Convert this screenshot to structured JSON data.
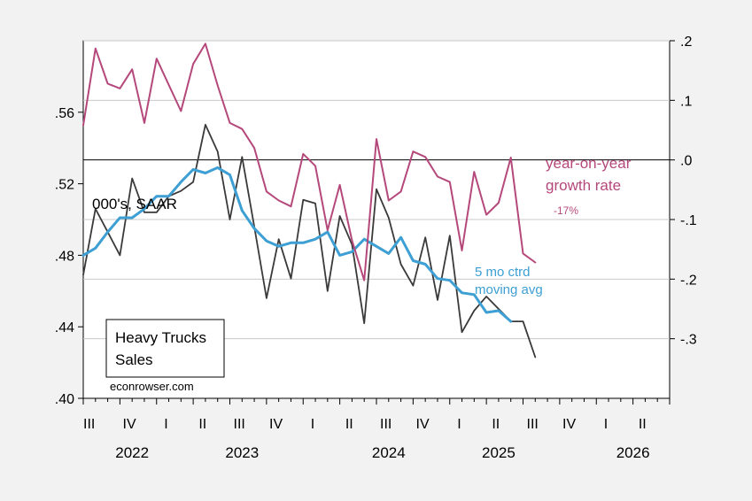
{
  "chart_data": {
    "type": "line",
    "title": "",
    "annotations": {
      "units": "000's, SAAR",
      "yoy_label_line1": "year-on-year",
      "yoy_label_line2": "growth rate",
      "yoy_last_value": "-17%",
      "ma_label_line1": "5 mo ctrd",
      "ma_label_line2": "moving avg",
      "legend_line1": "Heavy Trucks",
      "legend_line2": "Sales",
      "credit": "econrowser.com"
    },
    "colors": {
      "sales": "#3a3a3a",
      "moving_avg": "#3d9fd3",
      "yoy": "#b5487b",
      "background": "#f2f2f2",
      "plot_bg": "#ffffff"
    },
    "x_axis": {
      "start": "2022-07",
      "end": "2026-07",
      "quarter_ticks": [
        {
          "date": "2022-07",
          "label": "III"
        },
        {
          "date": "2022-10",
          "label": "IV"
        },
        {
          "date": "2023-01",
          "label": "I"
        },
        {
          "date": "2023-04",
          "label": "II"
        },
        {
          "date": "2023-07",
          "label": "III"
        },
        {
          "date": "2023-10",
          "label": "IV"
        },
        {
          "date": "2024-01",
          "label": "I"
        },
        {
          "date": "2024-04",
          "label": "II"
        },
        {
          "date": "2024-07",
          "label": "III"
        },
        {
          "date": "2024-10",
          "label": "IV"
        },
        {
          "date": "2025-01",
          "label": "I"
        },
        {
          "date": "2025-04",
          "label": "II"
        },
        {
          "date": "2025-07",
          "label": "III"
        },
        {
          "date": "2025-10",
          "label": "IV"
        },
        {
          "date": "2026-01",
          "label": "I"
        },
        {
          "date": "2026-04",
          "label": "II"
        }
      ],
      "year_labels": [
        {
          "date": "2022-11",
          "label": "2022"
        },
        {
          "date": "2023-08",
          "label": "2023"
        },
        {
          "date": "2024-08",
          "label": "2024"
        },
        {
          "date": "2025-05",
          "label": "2025"
        },
        {
          "date": "2026-04",
          "label": "2026"
        }
      ]
    },
    "y_left": {
      "ylim": [
        0.4,
        0.6
      ],
      "ticks": [
        0.4,
        0.44,
        0.48,
        0.52,
        0.56
      ],
      "tick_labels": [
        ".40",
        ".44",
        ".48",
        ".52",
        ".56"
      ]
    },
    "y_right": {
      "ylim": [
        -0.4,
        0.2
      ],
      "ticks": [
        0.2,
        0.1,
        0.0,
        -0.1,
        -0.2,
        -0.3
      ],
      "tick_labels": [
        ".2",
        ".1",
        ".0",
        "-.1",
        "-.2",
        "-.3"
      ]
    },
    "series": [
      {
        "name": "Heavy Trucks Sales",
        "axis": "left",
        "color": "#3a3a3a",
        "x": [
          "2022-07",
          "2022-08",
          "2022-09",
          "2022-10",
          "2022-11",
          "2022-12",
          "2023-01",
          "2023-02",
          "2023-03",
          "2023-04",
          "2023-05",
          "2023-06",
          "2023-07",
          "2023-08",
          "2023-09",
          "2023-10",
          "2023-11",
          "2023-12",
          "2024-01",
          "2024-02",
          "2024-03",
          "2024-04",
          "2024-05",
          "2024-06",
          "2024-07",
          "2024-08",
          "2024-09",
          "2024-10",
          "2024-11",
          "2024-12",
          "2025-01",
          "2025-02",
          "2025-03",
          "2025-04",
          "2025-05",
          "2025-06",
          "2025-07",
          "2025-08"
        ],
        "values": [
          0.469,
          0.506,
          0.493,
          0.48,
          0.523,
          0.504,
          0.504,
          0.513,
          0.516,
          0.521,
          0.553,
          0.538,
          0.5,
          0.535,
          0.496,
          0.456,
          0.489,
          0.467,
          0.511,
          0.509,
          0.46,
          0.502,
          0.486,
          0.442,
          0.517,
          0.501,
          0.475,
          0.463,
          0.49,
          0.455,
          0.491,
          0.437,
          0.449,
          0.457,
          0.45,
          0.443,
          0.443,
          0.423
        ]
      },
      {
        "name": "5 mo ctrd moving avg",
        "axis": "left",
        "color": "#3d9fd3",
        "x": [
          "2022-07",
          "2022-08",
          "2022-09",
          "2022-10",
          "2022-11",
          "2022-12",
          "2023-01",
          "2023-02",
          "2023-03",
          "2023-04",
          "2023-05",
          "2023-06",
          "2023-07",
          "2023-08",
          "2023-09",
          "2023-10",
          "2023-11",
          "2023-12",
          "2024-01",
          "2024-02",
          "2024-03",
          "2024-04",
          "2024-05",
          "2024-06",
          "2024-07",
          "2024-08",
          "2024-09",
          "2024-10",
          "2024-11",
          "2024-12",
          "2025-01",
          "2025-02",
          "2025-03",
          "2025-04",
          "2025-05",
          "2025-06"
        ],
        "values": [
          0.48,
          0.484,
          0.493,
          0.501,
          0.501,
          0.506,
          0.513,
          0.513,
          0.521,
          0.528,
          0.526,
          0.529,
          0.525,
          0.505,
          0.495,
          0.488,
          0.485,
          0.487,
          0.487,
          0.489,
          0.493,
          0.48,
          0.482,
          0.489,
          0.485,
          0.481,
          0.49,
          0.477,
          0.475,
          0.467,
          0.466,
          0.459,
          0.458,
          0.448,
          0.449,
          0.443
        ]
      },
      {
        "name": "year-on-year growth rate",
        "axis": "right",
        "color": "#b5487b",
        "x": [
          "2022-07",
          "2022-08",
          "2022-09",
          "2022-10",
          "2022-11",
          "2022-12",
          "2023-01",
          "2023-02",
          "2023-03",
          "2023-04",
          "2023-05",
          "2023-06",
          "2023-07",
          "2023-08",
          "2023-09",
          "2023-10",
          "2023-11",
          "2023-12",
          "2024-01",
          "2024-02",
          "2024-03",
          "2024-04",
          "2024-05",
          "2024-06",
          "2024-07",
          "2024-08",
          "2024-09",
          "2024-10",
          "2024-11",
          "2024-12",
          "2025-01",
          "2025-02",
          "2025-03",
          "2025-04",
          "2025-05",
          "2025-06",
          "2025-07",
          "2025-08"
        ],
        "values": [
          0.058,
          0.187,
          0.128,
          0.12,
          0.152,
          0.062,
          0.17,
          0.126,
          0.082,
          0.161,
          0.195,
          0.125,
          0.062,
          0.052,
          0.02,
          -0.053,
          -0.068,
          -0.078,
          0.01,
          -0.01,
          -0.118,
          -0.042,
          -0.135,
          -0.202,
          0.035,
          -0.068,
          -0.053,
          0.014,
          0.005,
          -0.028,
          -0.037,
          -0.152,
          -0.02,
          -0.092,
          -0.072,
          0.004,
          -0.157,
          -0.172
        ]
      }
    ],
    "grid": true,
    "legend": "none"
  }
}
